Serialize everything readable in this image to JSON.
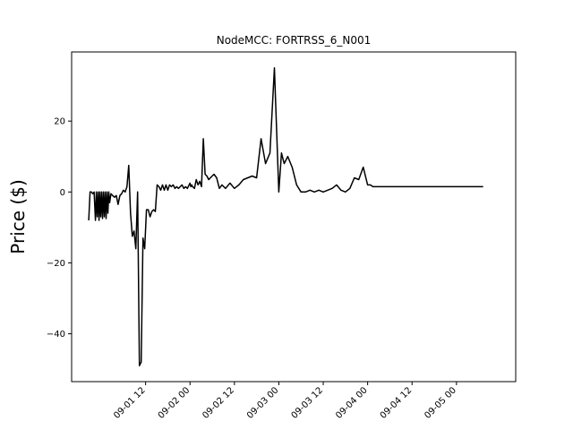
{
  "chart_data": {
    "type": "line",
    "title": "NodeMCC: FORTRSS_6_N001",
    "xlabel": "",
    "ylabel": "Price ($)",
    "ylim": [
      -53.5,
      39.5
    ],
    "xlim": [
      -0.333,
      4.667
    ],
    "y_ticks": [
      -40,
      -20,
      0,
      20
    ],
    "x_ticks": [
      {
        "pos": 0.5,
        "label": "09-01 12"
      },
      {
        "pos": 1.0,
        "label": "09-02 00"
      },
      {
        "pos": 1.5,
        "label": "09-02 12"
      },
      {
        "pos": 2.0,
        "label": "09-03 00"
      },
      {
        "pos": 2.5,
        "label": "09-03 12"
      },
      {
        "pos": 3.0,
        "label": "09-04 00"
      },
      {
        "pos": 3.5,
        "label": "09-04 12"
      },
      {
        "pos": 4.0,
        "label": "09-05 00"
      }
    ],
    "x_unit_note_days_from": "09-01 00",
    "grid": false,
    "color": "#000000",
    "series": [
      {
        "name": "",
        "x": [
          -0.14,
          -0.125,
          -0.11,
          -0.095,
          -0.08,
          -0.065,
          -0.055,
          -0.045,
          -0.035,
          -0.025,
          -0.015,
          -0.005,
          0.005,
          0.015,
          0.025,
          0.035,
          0.045,
          0.055,
          0.065,
          0.075,
          0.085,
          0.095,
          0.11,
          0.13,
          0.15,
          0.17,
          0.19,
          0.21,
          0.23,
          0.25,
          0.27,
          0.29,
          0.31,
          0.33,
          0.35,
          0.37,
          0.39,
          0.41,
          0.43,
          0.45,
          0.47,
          0.49,
          0.51,
          0.53,
          0.55,
          0.57,
          0.59,
          0.61,
          0.63,
          0.65,
          0.67,
          0.69,
          0.71,
          0.73,
          0.75,
          0.77,
          0.79,
          0.81,
          0.83,
          0.85,
          0.87,
          0.89,
          0.91,
          0.93,
          0.95,
          0.97,
          0.99,
          1.0,
          1.01,
          1.02,
          1.03,
          1.05,
          1.07,
          1.09,
          1.11,
          1.13,
          1.15,
          1.17,
          1.19,
          1.21,
          1.23,
          1.25,
          1.27,
          1.3,
          1.33,
          1.36,
          1.4,
          1.45,
          1.5,
          1.55,
          1.6,
          1.65,
          1.7,
          1.75,
          1.8,
          1.85,
          1.9,
          1.95,
          2.0,
          2.03,
          2.06,
          2.1,
          2.15,
          2.2,
          2.25,
          2.3,
          2.35,
          2.4,
          2.45,
          2.5,
          2.55,
          2.6,
          2.65,
          2.7,
          2.75,
          2.8,
          2.85,
          2.9,
          2.95,
          3.0,
          3.03,
          3.06,
          3.1,
          3.15,
          3.2,
          3.25,
          3.3,
          3.35,
          3.4,
          3.45,
          3.5,
          3.55,
          3.6,
          3.65,
          3.7,
          3.75,
          3.8,
          3.85,
          3.9,
          3.95,
          4.0,
          4.05,
          4.1,
          4.15,
          4.2,
          4.25,
          4.3
        ],
        "y": [
          -8.0,
          0.0,
          0.0,
          -0.5,
          0.0,
          -8.0,
          0.0,
          -7.0,
          0.0,
          -8.0,
          0.0,
          -7.0,
          0.0,
          -7.5,
          0.0,
          -7.0,
          0.0,
          -7.5,
          0.0,
          -6.0,
          0.0,
          -3.0,
          -0.5,
          -1.0,
          -1.5,
          -1.0,
          -3.5,
          -1.0,
          -0.5,
          0.5,
          0.0,
          1.5,
          7.5,
          -6.0,
          -12.5,
          -11.0,
          -16.0,
          0.0,
          -49.0,
          -48.0,
          -13.0,
          -16.0,
          -5.0,
          -5.0,
          -7.0,
          -5.5,
          -5.0,
          -5.5,
          2.0,
          1.5,
          0.5,
          2.0,
          0.5,
          2.0,
          0.5,
          2.0,
          1.5,
          2.0,
          1.0,
          1.5,
          1.0,
          1.5,
          2.0,
          1.0,
          1.5,
          1.0,
          2.0,
          2.5,
          1.5,
          2.0,
          1.5,
          1.0,
          3.5,
          2.0,
          3.0,
          1.5,
          15.0,
          5.0,
          4.5,
          3.5,
          4.0,
          4.5,
          5.0,
          4.0,
          1.0,
          2.0,
          1.0,
          2.5,
          1.0,
          2.0,
          3.5,
          4.0,
          4.5,
          4.0,
          15.0,
          8.0,
          11.0,
          35.0,
          0.0,
          11.0,
          8.0,
          10.0,
          7.0,
          2.0,
          0.0,
          0.0,
          0.5,
          0.0,
          0.5,
          0.0,
          0.5,
          1.0,
          2.0,
          0.5,
          0.0,
          1.0,
          4.0,
          3.5,
          7.0,
          2.0,
          2.0,
          1.5,
          1.5,
          1.5,
          1.5,
          1.5,
          1.5,
          1.5,
          1.5,
          1.5,
          1.5,
          1.5,
          1.5,
          1.5,
          1.5,
          1.5,
          1.5,
          1.5,
          1.5,
          1.5,
          1.5,
          1.5,
          1.5,
          1.5,
          1.5,
          1.5,
          1.5
        ]
      }
    ]
  }
}
